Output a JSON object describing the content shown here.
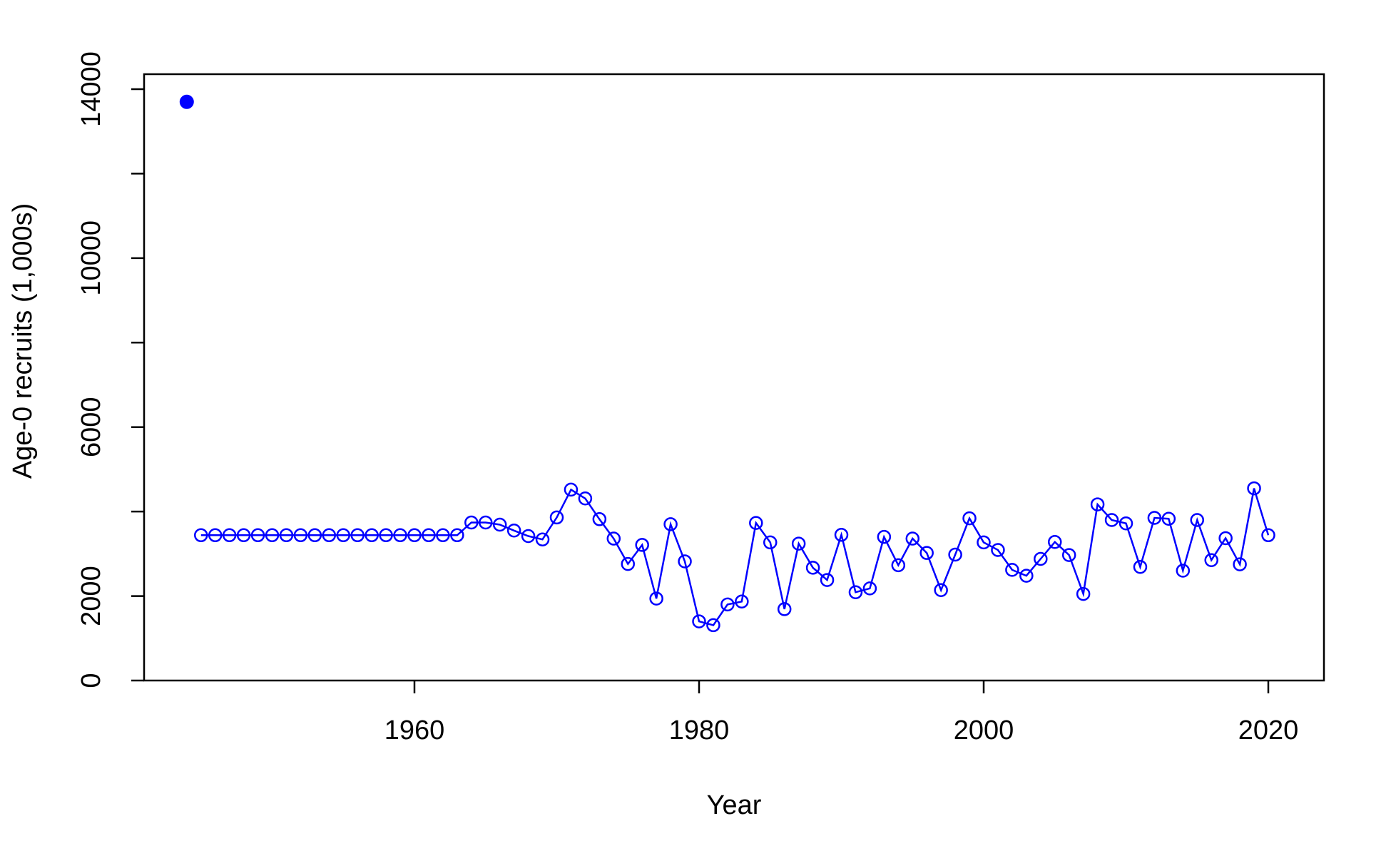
{
  "chart_data": {
    "type": "line",
    "xlabel": "Year",
    "ylabel": "Age-0 recruits (1,000s)",
    "xlim": [
      1942,
      2024
    ],
    "ylim": [
      0,
      14000
    ],
    "x_ticks": [
      1960,
      1980,
      2000,
      2020
    ],
    "x_tick_labels": [
      "1960",
      "1980",
      "2000",
      "2020"
    ],
    "y_ticks": [
      0,
      2000,
      4000,
      6000,
      8000,
      10000,
      12000,
      14000
    ],
    "y_tick_labels": [
      "0",
      "2000",
      "",
      "6000",
      "",
      "10000",
      "",
      "14000"
    ],
    "grid": false,
    "legend": "none",
    "colors": {
      "series": "#0000ff",
      "axis": "#000000"
    },
    "virgin_point": {
      "x": 1944,
      "y": 13700,
      "marker": "filled-circle"
    },
    "series": [
      {
        "marker": "open-circle",
        "x": [
          1945,
          1946,
          1947,
          1948,
          1949,
          1950,
          1951,
          1952,
          1953,
          1954,
          1955,
          1956,
          1957,
          1958,
          1959,
          1960,
          1961,
          1962,
          1963,
          1964,
          1965,
          1966,
          1967,
          1968,
          1969,
          1970,
          1971,
          1972,
          1973,
          1974,
          1975,
          1976,
          1977,
          1978,
          1979,
          1980,
          1981,
          1982,
          1983,
          1984,
          1985,
          1986,
          1987,
          1988,
          1989,
          1990,
          1991,
          1992,
          1993,
          1994,
          1995,
          1996,
          1997,
          1998,
          1999,
          2000,
          2001,
          2002,
          2003,
          2004,
          2005,
          2006,
          2007,
          2008,
          2009,
          2010,
          2011,
          2012,
          2013,
          2014,
          2015,
          2016,
          2017,
          2018,
          2019,
          2020
        ],
        "y": [
          3440,
          3440,
          3440,
          3440,
          3440,
          3440,
          3440,
          3440,
          3440,
          3440,
          3440,
          3440,
          3440,
          3440,
          3440,
          3440,
          3440,
          3440,
          3440,
          3740,
          3740,
          3690,
          3550,
          3420,
          3340,
          3860,
          4520,
          4310,
          3820,
          3360,
          2760,
          3210,
          1940,
          3700,
          2820,
          1400,
          1310,
          1800,
          1870,
          3730,
          3270,
          1690,
          3240,
          2670,
          2380,
          3450,
          2090,
          2180,
          3400,
          2730,
          3360,
          3020,
          2140,
          2980,
          3840,
          3270,
          3090,
          2620,
          2480,
          2880,
          3280,
          2970,
          2050,
          4170,
          3800,
          3720,
          2690,
          3850,
          3830,
          2600,
          3800,
          2850,
          3370,
          2750,
          4550,
          3440
        ]
      }
    ]
  }
}
